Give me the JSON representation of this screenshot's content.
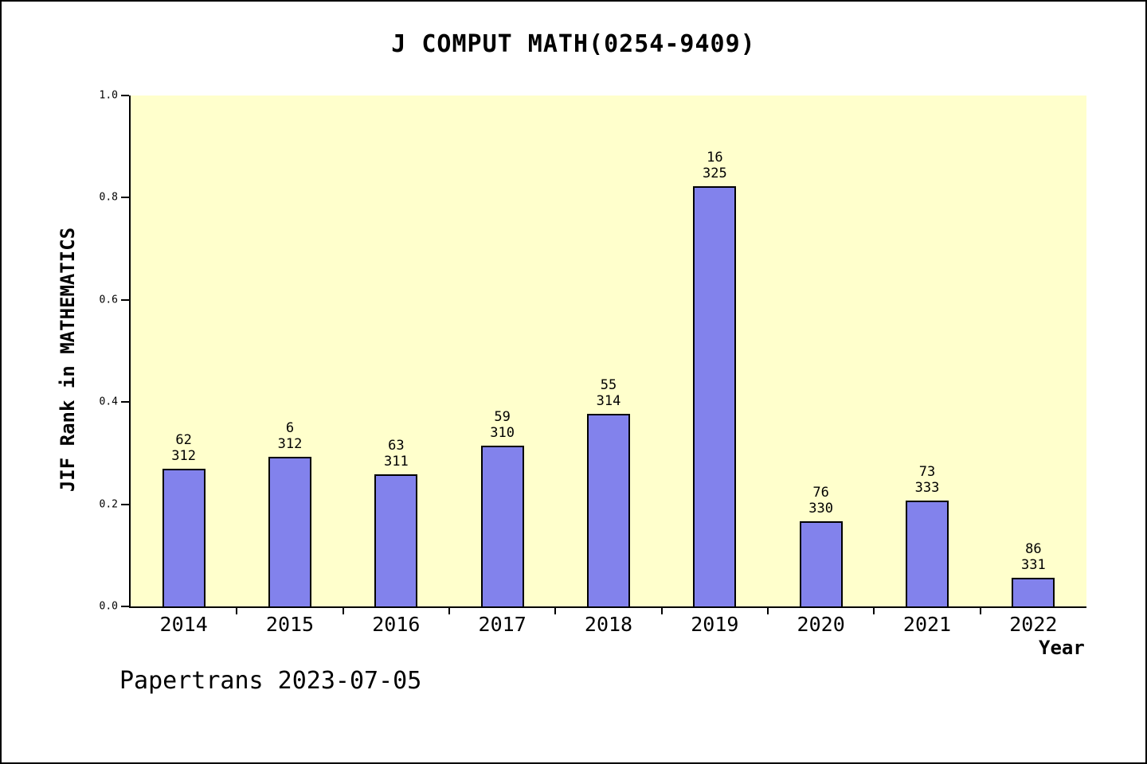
{
  "page": {
    "title": "J COMPUT MATH(0254-9409)",
    "footer": "Papertrans 2023-07-05"
  },
  "chart_data": {
    "type": "bar",
    "title": "J COMPUT MATH(0254-9409)",
    "xlabel": "Year",
    "ylabel": "JIF Rank in MATHEMATICS",
    "ylim": [
      0,
      1
    ],
    "yticks": [
      "0.0",
      "0.2",
      "0.4",
      "0.6",
      "0.8",
      "1.0"
    ],
    "legend": "none",
    "grid": false,
    "plot_bg_color": "#FFFFCC",
    "bar_color": "#8282EC",
    "categories": [
      "2014",
      "2015",
      "2016",
      "2017",
      "2018",
      "2019",
      "2020",
      "2021",
      "2022"
    ],
    "values": [
      0.27,
      0.293,
      0.258,
      0.315,
      0.377,
      0.822,
      0.166,
      0.207,
      0.056
    ],
    "bar_annotations": [
      {
        "rank": "62",
        "total": "312"
      },
      {
        "rank": "6",
        "total": "312"
      },
      {
        "rank": "63",
        "total": "311"
      },
      {
        "rank": "59",
        "total": "310"
      },
      {
        "rank": "55",
        "total": "314"
      },
      {
        "rank": "16",
        "total": "325"
      },
      {
        "rank": "76",
        "total": "330"
      },
      {
        "rank": "73",
        "total": "333"
      },
      {
        "rank": "86",
        "total": "331"
      }
    ]
  }
}
